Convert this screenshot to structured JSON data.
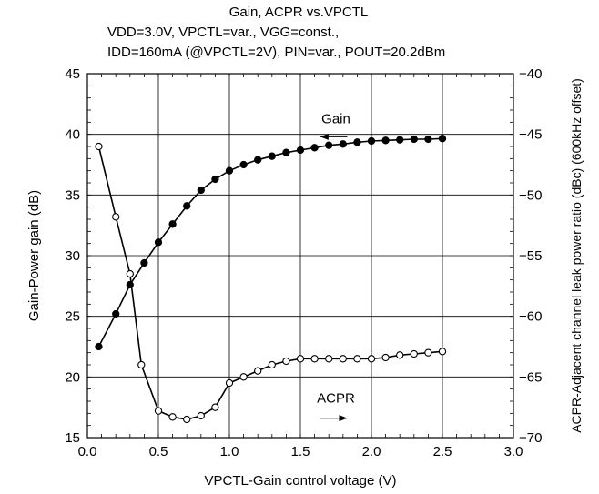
{
  "chart_data": {
    "type": "line",
    "title": "Gain, ACPR vs.VPCTL",
    "subtitle_lines": [
      "VDD=3.0V, VPCTL=var., VGG=const.,",
      "IDD=160mA (@VPCTL=2V), PIN=var., POUT=20.2dBm"
    ],
    "xlabel": "VPCTL-Gain control voltage (V)",
    "ylabel": "Gain-Power gain (dB)",
    "y2label": "ACPR-Adjacent channel leak power ratio (dBc) (600kHz offset)",
    "xlim": [
      0.0,
      3.0
    ],
    "ylim": [
      15,
      45
    ],
    "y2lim": [
      -70,
      -40
    ],
    "xticks": [
      "0.0",
      "0.5",
      "1.0",
      "1.5",
      "2.0",
      "2.5",
      "3.0"
    ],
    "yticks": [
      "15",
      "20",
      "25",
      "30",
      "35",
      "40",
      "45"
    ],
    "y2ticks": [
      "−70",
      "−65",
      "−60",
      "−55",
      "−50",
      "−45",
      "−40"
    ],
    "grid": true,
    "series": [
      {
        "name": "Gain",
        "axis": "left",
        "marker": "filled-circle",
        "x": [
          0.08,
          0.2,
          0.3,
          0.4,
          0.5,
          0.6,
          0.7,
          0.8,
          0.9,
          1.0,
          1.1,
          1.2,
          1.3,
          1.4,
          1.5,
          1.6,
          1.7,
          1.8,
          1.9,
          2.0,
          2.1,
          2.2,
          2.3,
          2.4,
          2.5
        ],
        "values": [
          22.5,
          25.2,
          27.6,
          29.4,
          31.1,
          32.6,
          34.1,
          35.4,
          36.3,
          37.0,
          37.5,
          37.9,
          38.2,
          38.5,
          38.7,
          38.9,
          39.1,
          39.2,
          39.35,
          39.45,
          39.5,
          39.55,
          39.6,
          39.6,
          39.65
        ]
      },
      {
        "name": "ACPR",
        "axis": "right",
        "marker": "open-circle",
        "x": [
          0.08,
          0.2,
          0.3,
          0.38,
          0.5,
          0.6,
          0.7,
          0.8,
          0.9,
          1.0,
          1.1,
          1.2,
          1.3,
          1.4,
          1.5,
          1.6,
          1.7,
          1.8,
          1.9,
          2.0,
          2.1,
          2.2,
          2.3,
          2.4,
          2.5
        ],
        "values": [
          -46.0,
          -51.8,
          -56.5,
          -64.0,
          -67.8,
          -68.3,
          -68.5,
          -68.2,
          -67.5,
          -65.5,
          -65.0,
          -64.5,
          -64.0,
          -63.7,
          -63.5,
          -63.5,
          -63.5,
          -63.5,
          -63.5,
          -63.5,
          -63.4,
          -63.2,
          -63.1,
          -63.0,
          -62.9
        ]
      }
    ],
    "annotations": [
      {
        "text": "Gain",
        "arrow": "left",
        "series": "Gain"
      },
      {
        "text": "ACPR",
        "arrow": "right",
        "series": "ACPR"
      }
    ]
  }
}
